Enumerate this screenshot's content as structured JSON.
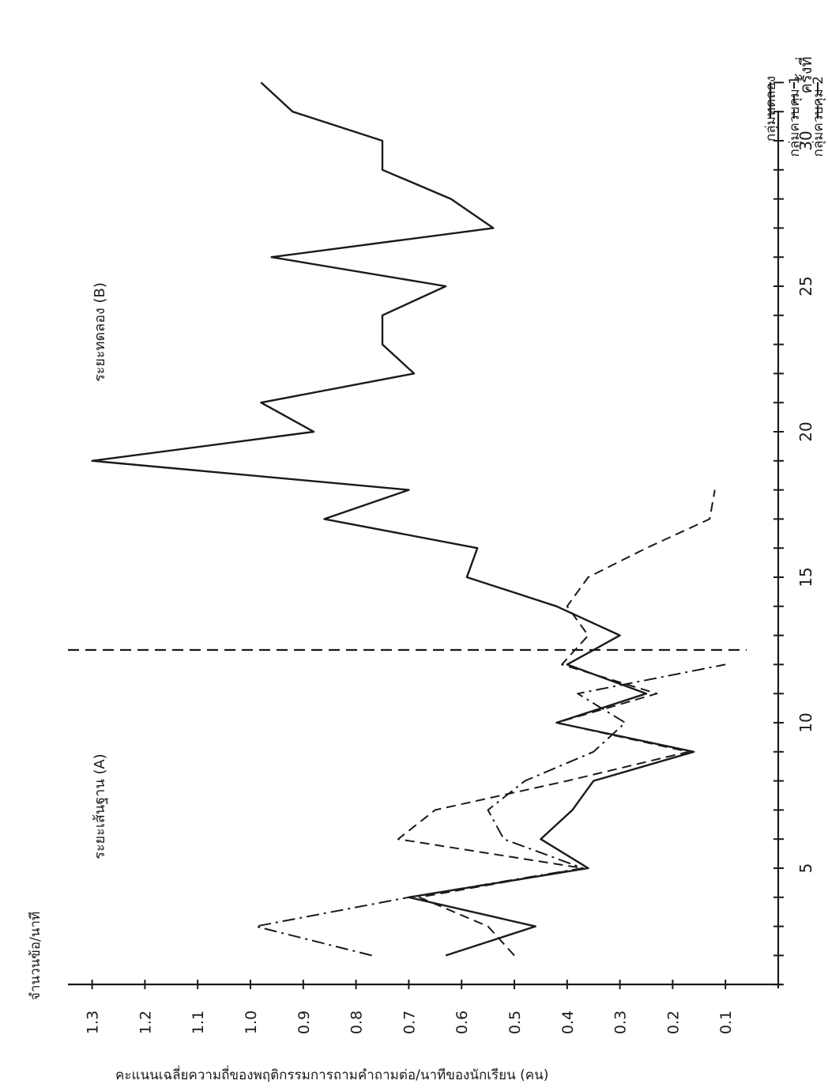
{
  "chart_data": {
    "type": "line",
    "orientation": "rotated-90-cw",
    "title": "",
    "ylabel_top": "จำนวนข้อ/นาที",
    "ylabel_side": "คะแนนเฉลี่ยความถี่ของพฤติกรรมการถามคำถามต่อ/นาทีของนักเรียน (คน)",
    "xlabel": "ครั้งที่",
    "ylim": [
      0,
      1.3
    ],
    "y_ticks": [
      "0.1",
      "0.2",
      "0.3",
      "0.4",
      "0.5",
      "0.6",
      "0.7",
      "0.8",
      "0.9",
      "1.0",
      "1.1",
      "1.2",
      "1.3"
    ],
    "x_ticks": [
      "5",
      "10",
      "15",
      "20",
      "25",
      "30"
    ],
    "phase_divider_x": 12.5,
    "phases": [
      {
        "label": "ระยะเส้นฐาน (A)",
        "x": 2
      },
      {
        "label": "ระยะทดลอง (B)",
        "x": 22
      }
    ],
    "legend": [
      {
        "label": "กลุ่มทดลอง",
        "style": "solid"
      },
      {
        "label": "กลุ่มควบคุม 1",
        "style": "dashed"
      },
      {
        "label": "กลุ่มควบคุม 2",
        "style": "dashdot"
      }
    ],
    "series": [
      {
        "name": "กลุ่มทดลอง",
        "style": "solid",
        "x": [
          2,
          3,
          4,
          5,
          6,
          7,
          8,
          9,
          10,
          11,
          12,
          13,
          14,
          15,
          16,
          17,
          18,
          19,
          20,
          21,
          22,
          23,
          24,
          25,
          26,
          27,
          28,
          29,
          30,
          31,
          32
        ],
        "y": [
          0.63,
          0.46,
          0.7,
          0.36,
          0.45,
          0.39,
          0.35,
          0.16,
          0.42,
          0.25,
          0.4,
          0.3,
          0.42,
          0.59,
          0.57,
          0.86,
          0.7,
          1.3,
          0.88,
          0.98,
          0.69,
          0.75,
          0.75,
          0.63,
          0.96,
          0.54,
          0.62,
          0.75,
          0.75,
          0.92,
          0.98
        ]
      },
      {
        "name": "กลุ่มควบคุม 1",
        "style": "dashed",
        "x": [
          2,
          3,
          4,
          5,
          6,
          7,
          8,
          9,
          10,
          11,
          12,
          13,
          14,
          15,
          16,
          17,
          18,
          19,
          20,
          21,
          22,
          23,
          24,
          25,
          26,
          27,
          28,
          29,
          30,
          31,
          32
        ],
        "y": [
          0.5,
          0.55,
          0.68,
          0.37,
          0.72,
          0.65,
          0.4,
          0.17,
          0.42,
          0.23,
          0.41,
          0.36,
          0.4,
          0.36,
          0.25,
          0.13,
          0.12,
          null,
          null,
          null,
          null,
          null,
          null,
          null,
          null,
          null,
          null,
          null,
          null,
          null,
          null
        ]
      },
      {
        "name": "กลุ่มควบคุม 2",
        "style": "dashdot",
        "x": [
          2,
          3,
          4,
          5,
          6,
          7,
          8,
          9,
          10,
          11,
          12
        ],
        "y": [
          0.77,
          0.99,
          0.7,
          0.37,
          0.52,
          0.55,
          0.48,
          0.35,
          0.29,
          0.38,
          0.1
        ]
      }
    ]
  }
}
